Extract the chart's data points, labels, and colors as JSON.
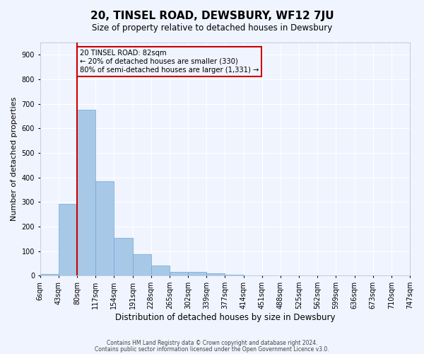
{
  "title": "20, TINSEL ROAD, DEWSBURY, WF12 7JU",
  "subtitle": "Size of property relative to detached houses in Dewsbury",
  "xlabel": "Distribution of detached houses by size in Dewsbury",
  "ylabel": "Number of detached properties",
  "bar_values": [
    8,
    293,
    675,
    385,
    153,
    86,
    40,
    15,
    15,
    10,
    5,
    0,
    0,
    0,
    0,
    0,
    0,
    0,
    0,
    0
  ],
  "bar_labels": [
    "6sqm",
    "43sqm",
    "80sqm",
    "117sqm",
    "154sqm",
    "191sqm",
    "228sqm",
    "265sqm",
    "302sqm",
    "339sqm",
    "377sqm",
    "414sqm",
    "451sqm",
    "488sqm",
    "525sqm",
    "562sqm",
    "599sqm",
    "636sqm",
    "673sqm",
    "710sqm",
    "747sqm"
  ],
  "ylim": [
    0,
    950
  ],
  "yticks": [
    0,
    100,
    200,
    300,
    400,
    500,
    600,
    700,
    800,
    900
  ],
  "bar_color": "#a8c8e8",
  "bar_edge_color": "#6aaad4",
  "property_line_x": 2,
  "property_line_color": "#cc0000",
  "annotation_text": "20 TINSEL ROAD: 82sqm\n← 20% of detached houses are smaller (330)\n80% of semi-detached houses are larger (1,331) →",
  "annotation_box_color": "#cc0000",
  "background_color": "#f0f4ff",
  "grid_color": "#ffffff",
  "footer_line1": "Contains HM Land Registry data © Crown copyright and database right 2024.",
  "footer_line2": "Contains public sector information licensed under the Open Government Licence v3.0."
}
